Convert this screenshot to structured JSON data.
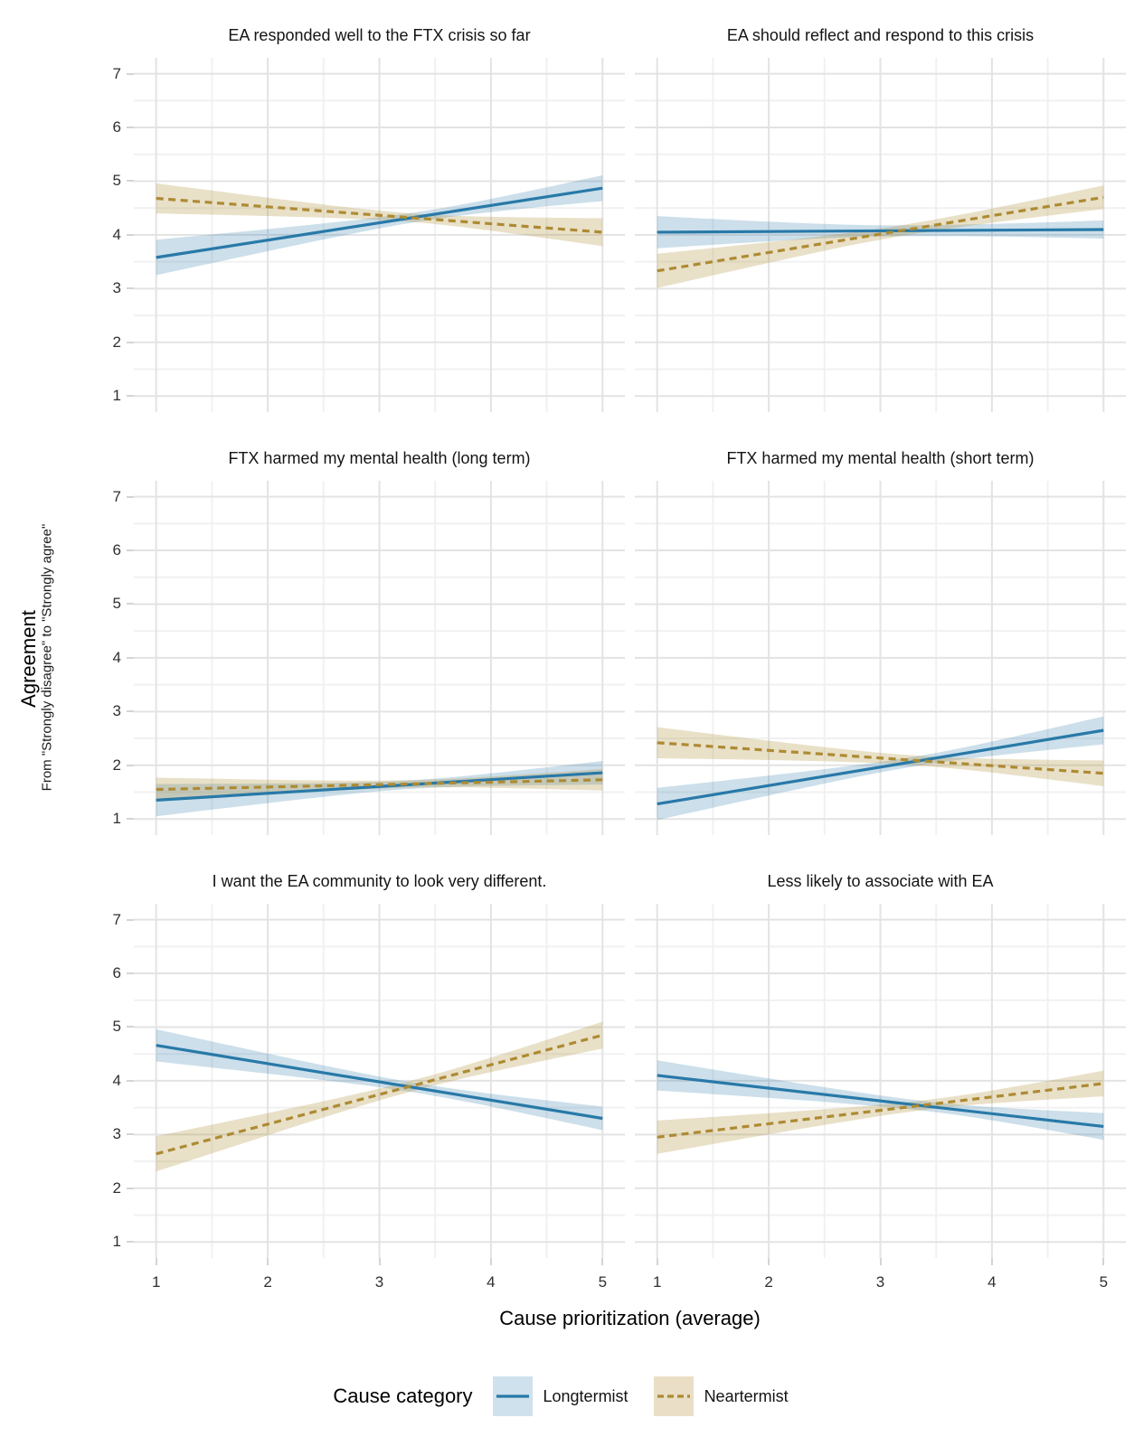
{
  "chart_data": {
    "type": "line",
    "description": "Faceted linear-fit plot (2 columns x 3 rows) with confidence ribbons",
    "x": {
      "label": "Cause prioritization (average)",
      "ticks": [
        1,
        2,
        3,
        4,
        5
      ],
      "range": [
        1,
        5
      ]
    },
    "y": {
      "label": "Agreement",
      "sublabel": "From \"Strongly disagree\" to \"Strongly agree\"",
      "ticks": [
        1,
        2,
        3,
        4,
        5,
        6,
        7
      ],
      "range": [
        1,
        7
      ]
    },
    "legend": {
      "title": "Cause category",
      "position": "bottom",
      "entries": [
        {
          "name": "Longtermist",
          "line_style": "solid",
          "line_color": "#2879a8",
          "band_color": "#cfe1ec"
        },
        {
          "name": "Neartermist",
          "line_style": "dashed",
          "line_color": "#ad8b33",
          "band_color": "#eadfc6"
        }
      ]
    },
    "grid": {
      "major": true,
      "minor": true
    },
    "facets": [
      {
        "title": "EA responded well to the FTX crisis so far",
        "series": [
          {
            "name": "Longtermist",
            "x": [
              1,
              5
            ],
            "y": [
              3.58,
              4.87
            ],
            "ci_start": 0.33,
            "ci_mid": 0.09,
            "ci_end": 0.24,
            "pinch_x": 3.4
          },
          {
            "name": "Neartermist",
            "x": [
              1,
              5
            ],
            "y": [
              4.68,
              4.05
            ],
            "ci_start": 0.28,
            "ci_mid": 0.08,
            "ci_end": 0.26,
            "pinch_x": 3.3
          }
        ]
      },
      {
        "title": "EA should reflect and respond to this crisis",
        "series": [
          {
            "name": "Longtermist",
            "x": [
              1,
              5
            ],
            "y": [
              4.05,
              4.1
            ],
            "ci_start": 0.3,
            "ci_mid": 0.1,
            "ci_end": 0.17,
            "pinch_x": 3.2
          },
          {
            "name": "Neartermist",
            "x": [
              1,
              5
            ],
            "y": [
              3.33,
              4.7
            ],
            "ci_start": 0.32,
            "ci_mid": 0.1,
            "ci_end": 0.22,
            "pinch_x": 3.2
          }
        ]
      },
      {
        "title": "FTX harmed my mental health (long term)",
        "series": [
          {
            "name": "Longtermist",
            "x": [
              1,
              5
            ],
            "y": [
              1.35,
              1.86
            ],
            "ci_start": 0.3,
            "ci_mid": 0.08,
            "ci_end": 0.22,
            "pinch_x": 3.3
          },
          {
            "name": "Neartermist",
            "x": [
              1,
              5
            ],
            "y": [
              1.55,
              1.73
            ],
            "ci_start": 0.22,
            "ci_mid": 0.07,
            "ci_end": 0.2,
            "pinch_x": 3.3
          }
        ]
      },
      {
        "title": "FTX harmed my mental health (short term)",
        "series": [
          {
            "name": "Longtermist",
            "x": [
              1,
              5
            ],
            "y": [
              1.28,
              2.65
            ],
            "ci_start": 0.3,
            "ci_mid": 0.09,
            "ci_end": 0.26,
            "pinch_x": 3.3
          },
          {
            "name": "Neartermist",
            "x": [
              1,
              5
            ],
            "y": [
              2.42,
              1.85
            ],
            "ci_start": 0.29,
            "ci_mid": 0.09,
            "ci_end": 0.24,
            "pinch_x": 3.3
          }
        ]
      },
      {
        "title": "I want the EA community to look very different.",
        "series": [
          {
            "name": "Longtermist",
            "x": [
              1,
              5
            ],
            "y": [
              4.66,
              3.3
            ],
            "ci_start": 0.3,
            "ci_mid": 0.09,
            "ci_end": 0.22,
            "pinch_x": 3.35
          },
          {
            "name": "Neartermist",
            "x": [
              1,
              5
            ],
            "y": [
              2.64,
              4.85
            ],
            "ci_start": 0.33,
            "ci_mid": 0.1,
            "ci_end": 0.25,
            "pinch_x": 3.35
          }
        ]
      },
      {
        "title": "Less likely to associate with EA",
        "series": [
          {
            "name": "Longtermist",
            "x": [
              1,
              5
            ],
            "y": [
              4.1,
              3.15
            ],
            "ci_start": 0.28,
            "ci_mid": 0.09,
            "ci_end": 0.25,
            "pinch_x": 3.45
          },
          {
            "name": "Neartermist",
            "x": [
              1,
              5
            ],
            "y": [
              2.95,
              3.95
            ],
            "ci_start": 0.31,
            "ci_mid": 0.09,
            "ci_end": 0.24,
            "pinch_x": 3.45
          }
        ]
      }
    ],
    "colors": {
      "grid_major": "#e3e3e3",
      "grid_minor": "#f1f1f1",
      "tick_mark": "#d4d4d4",
      "band_opacity_longtermist": 0.24,
      "band_opacity_neartermist": 0.27
    }
  }
}
